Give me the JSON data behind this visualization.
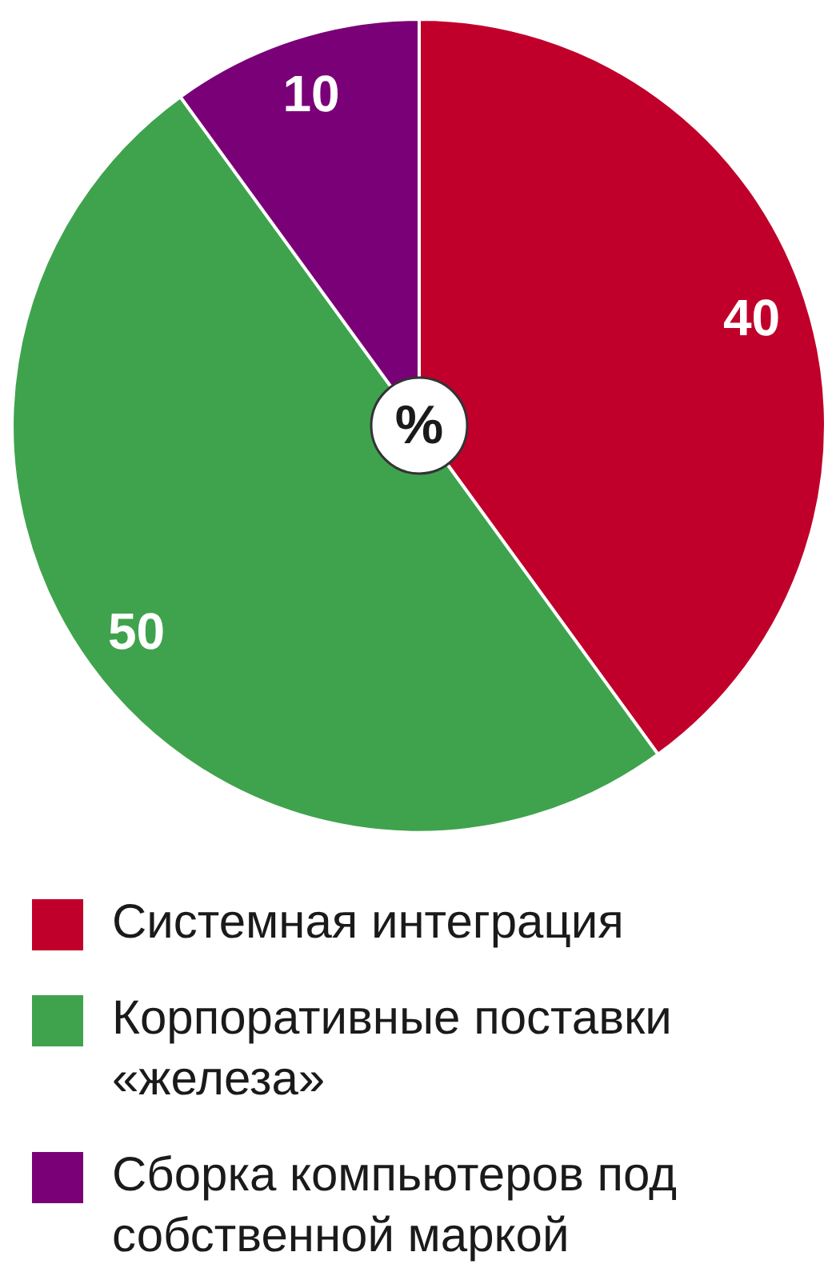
{
  "chart_data": {
    "type": "pie",
    "title": "%",
    "categories": [
      "Системная интеграция",
      "Корпоративные поставки «железа»",
      "Сборка компьютеров под собственной маркой"
    ],
    "values": [
      40,
      50,
      10
    ],
    "colors": [
      "#c0002a",
      "#3fa34d",
      "#7a0078"
    ],
    "data_labels": true,
    "legend": "bottom"
  }
}
